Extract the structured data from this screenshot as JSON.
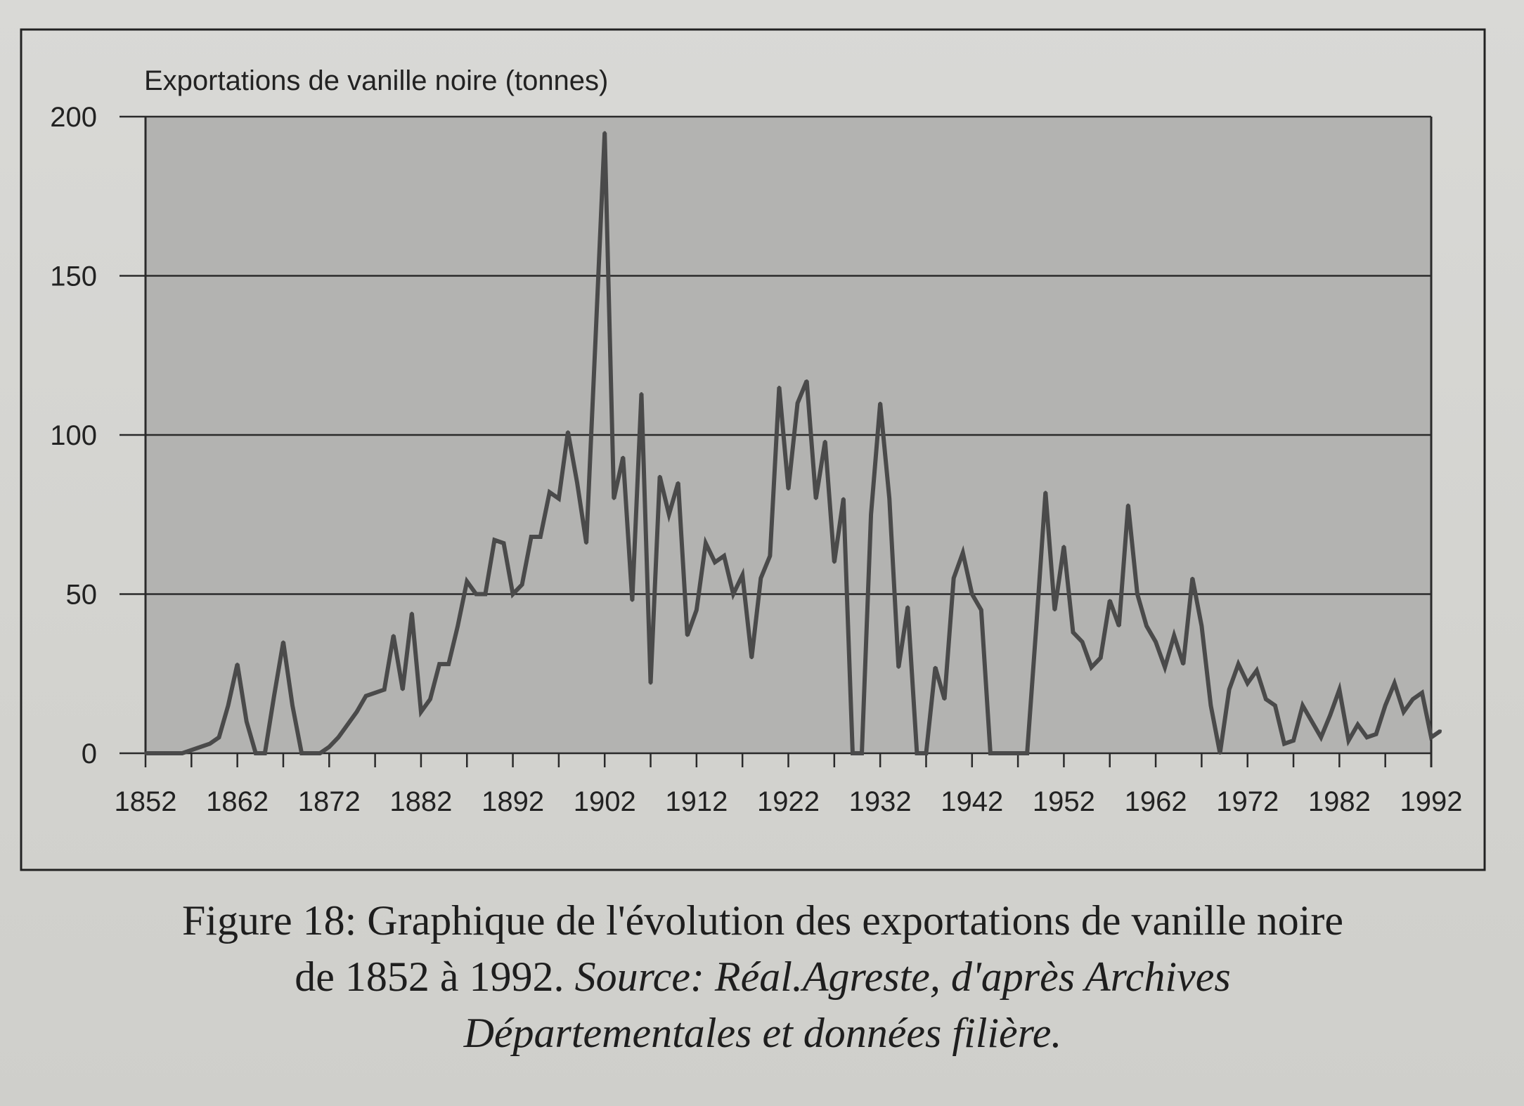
{
  "chart_data": {
    "type": "line",
    "title": "Exportations de vanille noire (tonnes)",
    "xlabel": "",
    "ylabel": "",
    "xlim": [
      1852,
      1992
    ],
    "ylim": [
      0,
      200
    ],
    "x_ticks": [
      "1852",
      "1862",
      "1872",
      "1882",
      "1892",
      "1902",
      "1912",
      "1922",
      "1932",
      "1942",
      "1952",
      "1962",
      "1972",
      "1982",
      "1992"
    ],
    "y_ticks": [
      "0",
      "50",
      "100",
      "150",
      "200"
    ],
    "grid": "horizontal",
    "legend": "none",
    "line_color": "#4a4a4a",
    "plot_background": "#b3b3b1",
    "x_start": 1852,
    "values": [
      0,
      0,
      0,
      0,
      0,
      1,
      2,
      3,
      5,
      15,
      28,
      10,
      0,
      0,
      18,
      35,
      15,
      0,
      0,
      0,
      2,
      5,
      9,
      13,
      18,
      19,
      20,
      37,
      20,
      44,
      13,
      17,
      28,
      28,
      40,
      54,
      50,
      50,
      67,
      66,
      50,
      53,
      68,
      68,
      82,
      80,
      101,
      85,
      66,
      130,
      195,
      80,
      93,
      48,
      113,
      22,
      87,
      75,
      85,
      37,
      45,
      66,
      60,
      62,
      50,
      56,
      30,
      55,
      62,
      115,
      83,
      110,
      117,
      80,
      98,
      60,
      80,
      0,
      0,
      75,
      110,
      80,
      27,
      46,
      0,
      0,
      27,
      17,
      55,
      63,
      50,
      45,
      0,
      0,
      0,
      0,
      0,
      40,
      82,
      45,
      65,
      38,
      35,
      27,
      30,
      48,
      40,
      78,
      50,
      40,
      35,
      27,
      37,
      28,
      55,
      40,
      15,
      0,
      20,
      28,
      22,
      26,
      17,
      15,
      3,
      4,
      15,
      10,
      5,
      12,
      20,
      4,
      9,
      5,
      6,
      15,
      22,
      13,
      17,
      19,
      5,
      7
    ]
  },
  "caption": {
    "text_line1": "Figure 18: Graphique de l'évolution des exportations de vanille noire",
    "text_line2": "de 1852 à 1992.",
    "source": "Source: Réal.Agreste, d'après Archives",
    "source_line2": "Départementales et données filière."
  }
}
